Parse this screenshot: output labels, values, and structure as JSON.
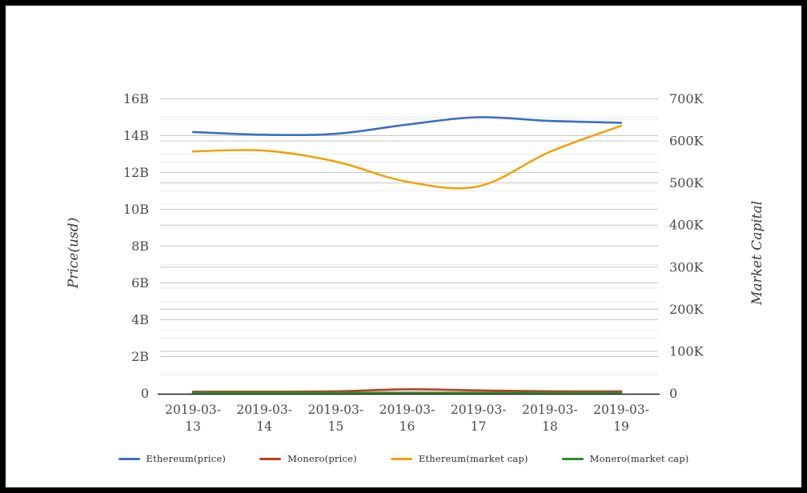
{
  "frame": {
    "border_color": "#000000",
    "background": "#ffffff"
  },
  "chart_data": {
    "type": "line",
    "title": "",
    "categories": [
      "2019-03-13",
      "2019-03-14",
      "2019-03-15",
      "2019-03-16",
      "2019-03-17",
      "2019-03-18",
      "2019-03-19"
    ],
    "series": [
      {
        "name": "Ethereum(price)",
        "axis": "left",
        "unit": "B",
        "color": "#3d6fbf",
        "values": [
          14.2,
          14.05,
          14.1,
          14.6,
          15.0,
          14.8,
          14.7
        ]
      },
      {
        "name": "Monero(price)",
        "axis": "left",
        "unit": "B",
        "color": "#c23b22",
        "values": [
          0.09,
          0.09,
          0.11,
          0.22,
          0.16,
          0.11,
          0.11
        ]
      },
      {
        "name": "Ethereum(market cap)",
        "axis": "right",
        "unit": "K",
        "color": "#f0a30a",
        "values": [
          575,
          577,
          551,
          503,
          492,
          574,
          636
        ]
      },
      {
        "name": "Monero(market cap)",
        "axis": "right",
        "unit": "K",
        "color": "#2e8b2e",
        "values": [
          1.5,
          1.5,
          1.5,
          1.5,
          1.5,
          1.5,
          1.5
        ]
      }
    ],
    "left_axis": {
      "title": "Price(usd)",
      "tick_labels": [
        "0",
        "2B",
        "4B",
        "6B",
        "8B",
        "10B",
        "12B",
        "14B",
        "16B"
      ],
      "tick_values": [
        0,
        2,
        4,
        6,
        8,
        10,
        12,
        14,
        16
      ],
      "range": [
        0,
        16
      ],
      "minor_step": 1
    },
    "right_axis": {
      "title": "Market Capital",
      "tick_labels": [
        "0",
        "100K",
        "200K",
        "300K",
        "400K",
        "500K",
        "600K",
        "700K"
      ],
      "tick_values": [
        0,
        100,
        200,
        300,
        400,
        500,
        600,
        700
      ],
      "range": [
        0,
        700
      ],
      "minor_step": 50
    },
    "grid": {
      "on": true,
      "major_color": "#c6c6c6",
      "minor_color": "#ebebeb"
    },
    "axis_line_color": "#1a1a1a",
    "tick_label_color": "#4a4a4a",
    "legend_position": "bottom"
  }
}
